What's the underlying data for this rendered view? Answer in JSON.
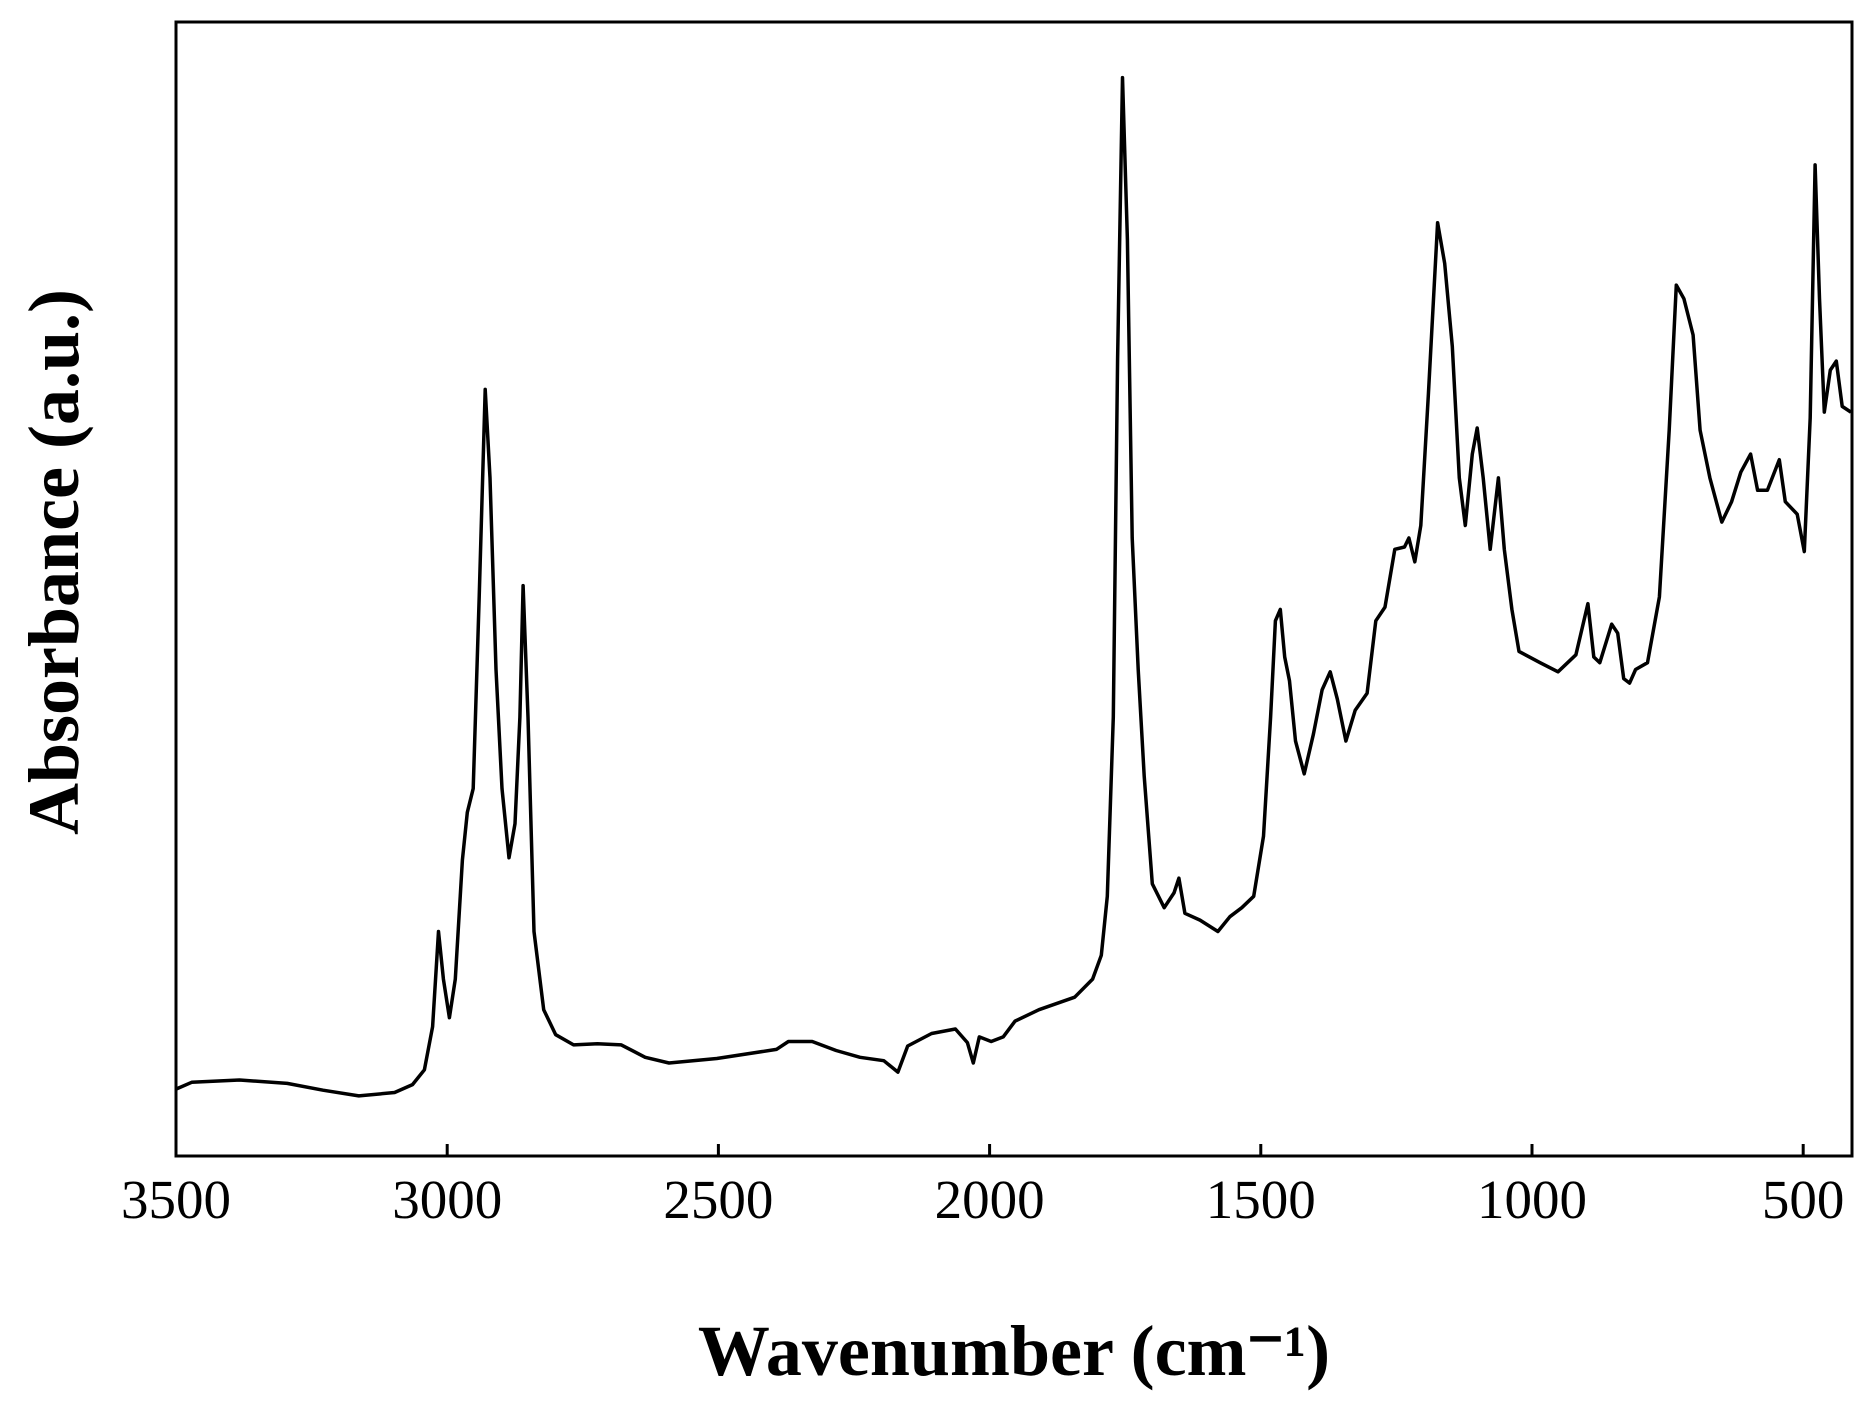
{
  "chart_data": {
    "type": "line",
    "xlabel": "Wavenumber (cm⁻¹)",
    "ylabel": "Absorbance (a.u.)",
    "xlim": [
      3500,
      410
    ],
    "ylim": [
      0,
      100
    ],
    "xticks": [
      3500,
      3000,
      2500,
      2000,
      1500,
      1000,
      500
    ],
    "color": "#000000",
    "grid": false,
    "x": [
      3500,
      3471,
      3383,
      3295,
      3229,
      3163,
      3097,
      3064,
      3042,
      3027,
      3016,
      3007,
      2996,
      2985,
      2972,
      2963,
      2952,
      2941,
      2930,
      2921,
      2910,
      2899,
      2886,
      2875,
      2866,
      2860,
      2851,
      2840,
      2822,
      2800,
      2767,
      2723,
      2679,
      2635,
      2591,
      2503,
      2393,
      2371,
      2327,
      2283,
      2239,
      2195,
      2169,
      2151,
      2107,
      2063,
      2041,
      2030,
      2019,
      1997,
      1975,
      1953,
      1909,
      1843,
      1810,
      1794,
      1783,
      1772,
      1764,
      1755,
      1746,
      1737,
      1726,
      1715,
      1700,
      1678,
      1660,
      1651,
      1640,
      1612,
      1579,
      1557,
      1535,
      1513,
      1495,
      1482,
      1473,
      1464,
      1456,
      1447,
      1436,
      1420,
      1403,
      1387,
      1372,
      1359,
      1343,
      1326,
      1304,
      1288,
      1271,
      1253,
      1235,
      1227,
      1216,
      1205,
      1191,
      1174,
      1161,
      1147,
      1134,
      1123,
      1110,
      1101,
      1090,
      1077,
      1062,
      1051,
      1037,
      1024,
      985,
      952,
      919,
      897,
      886,
      875,
      853,
      842,
      831,
      820,
      809,
      787,
      765,
      747,
      734,
      720,
      703,
      690,
      672,
      650,
      632,
      615,
      597,
      584,
      566,
      544,
      533,
      511,
      498,
      487,
      478,
      470,
      461,
      450,
      439,
      428,
      412
    ],
    "values": [
      5.9,
      6.5,
      6.7,
      6.4,
      5.8,
      5.3,
      5.6,
      6.3,
      7.6,
      11.4,
      19.8,
      15.6,
      12.2,
      15.6,
      26.1,
      30.3,
      32.4,
      49.3,
      67.6,
      59.8,
      42.9,
      32.4,
      26.3,
      29.3,
      38.7,
      50.3,
      38.7,
      19.8,
      12.9,
      10.7,
      9.8,
      9.9,
      9.8,
      8.7,
      8.2,
      8.6,
      9.4,
      10.1,
      10.1,
      9.3,
      8.7,
      8.4,
      7.4,
      9.7,
      10.8,
      11.2,
      10.0,
      8.2,
      10.5,
      10.1,
      10.5,
      11.9,
      12.9,
      14.0,
      15.6,
      17.7,
      22.9,
      38.7,
      70.3,
      95.1,
      80.8,
      54.5,
      42.9,
      33.5,
      24.0,
      21.9,
      23.2,
      24.5,
      21.4,
      20.8,
      19.8,
      21.1,
      21.9,
      22.9,
      28.2,
      38.7,
      47.2,
      48.2,
      44.0,
      41.9,
      36.6,
      33.7,
      37.2,
      41.1,
      42.7,
      40.3,
      36.6,
      39.3,
      40.8,
      47.2,
      48.4,
      53.5,
      53.7,
      54.5,
      52.4,
      55.6,
      67.2,
      82.3,
      78.7,
      71.4,
      59.8,
      55.6,
      61.9,
      64.2,
      59.8,
      53.5,
      59.8,
      53.5,
      48.2,
      44.5,
      43.5,
      42.7,
      44.2,
      48.7,
      44.0,
      43.5,
      46.9,
      46.1,
      42.1,
      41.7,
      42.9,
      43.5,
      49.3,
      64.0,
      76.8,
      75.6,
      72.4,
      64.0,
      59.8,
      55.9,
      57.7,
      60.3,
      61.9,
      58.7,
      58.7,
      61.4,
      57.7,
      56.6,
      53.3,
      65.1,
      87.4,
      75.6,
      65.6,
      69.3,
      70.1,
      66.1,
      65.6
    ]
  }
}
